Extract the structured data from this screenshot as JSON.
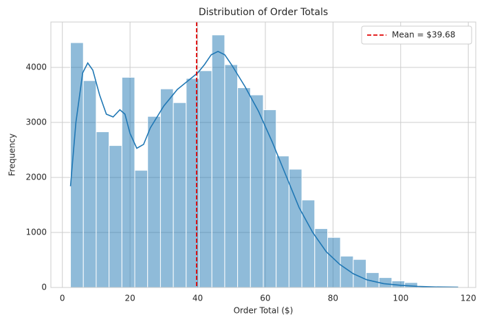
{
  "chart_data": {
    "type": "histogram",
    "title": "Distribution of Order Totals",
    "xlabel": "Order Total ($)",
    "ylabel": "Frequency",
    "bins": [
      2.4,
      6.2,
      10.0,
      13.8,
      17.6,
      21.4,
      25.2,
      29.0,
      32.8,
      36.6,
      40.4,
      44.2,
      48.0,
      51.8,
      55.6,
      59.4,
      63.2,
      67.0,
      70.8,
      74.6,
      78.4,
      82.2,
      86.0,
      89.8,
      93.6,
      97.4,
      101.2,
      105.0
    ],
    "values": [
      4450,
      3760,
      2830,
      2580,
      3820,
      2130,
      3110,
      3610,
      3360,
      3800,
      3940,
      4590,
      4050,
      3630,
      3500,
      3230,
      2390,
      2150,
      1590,
      1070,
      910,
      570,
      510,
      270,
      180,
      120,
      90
    ],
    "color": "#1f77b4",
    "kde": {
      "x": [
        2.4,
        4,
        6,
        7.5,
        9,
        11,
        13,
        15,
        17,
        18.5,
        20,
        22,
        24,
        26,
        30,
        34,
        38,
        40,
        42,
        44,
        46,
        48,
        50,
        54,
        58,
        62,
        66,
        70,
        74,
        78,
        82,
        86,
        90,
        95,
        100,
        105,
        110,
        117
      ],
      "values": [
        1840,
        3000,
        3900,
        4080,
        3950,
        3500,
        3150,
        3100,
        3230,
        3150,
        2800,
        2530,
        2600,
        2900,
        3300,
        3600,
        3800,
        3900,
        4050,
        4230,
        4290,
        4230,
        4050,
        3650,
        3200,
        2650,
        2050,
        1450,
        1000,
        650,
        420,
        250,
        140,
        70,
        40,
        20,
        10,
        5
      ],
      "color": "#1f77b4"
    },
    "mean_line": {
      "value": 39.68,
      "label": "Mean = $39.68",
      "color": "#e00000"
    },
    "xlim": [
      -3.4,
      122.2
    ],
    "xticks": [
      0,
      20,
      40,
      60,
      80,
      100,
      120
    ],
    "ylim": [
      0,
      4825
    ],
    "yticks": [
      0,
      1000,
      2000,
      3000,
      4000
    ],
    "grid": true,
    "legend_position": "upper right"
  }
}
